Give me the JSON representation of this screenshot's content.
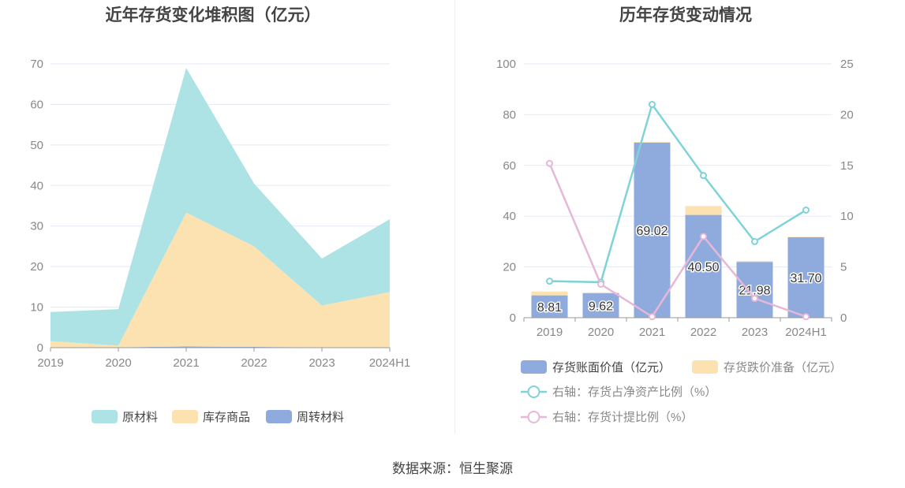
{
  "source_text": "数据来源：恒生聚源",
  "chart_data": [
    {
      "type": "area",
      "stacked": true,
      "title": "近年存货变化堆积图（亿元）",
      "categories": [
        "2019",
        "2020",
        "2021",
        "2022",
        "2023",
        "2024H1"
      ],
      "y_ticks": [
        0,
        10,
        20,
        30,
        40,
        50,
        60,
        70
      ],
      "ylim": [
        0,
        70
      ],
      "grid": true,
      "legend_position": "bottom",
      "series": [
        {
          "name": "周转材料",
          "color": "#8faadc",
          "values": [
            0.1,
            0.1,
            0.3,
            0.2,
            0.1,
            0.1
          ]
        },
        {
          "name": "库存商品",
          "color": "#fde2b1",
          "values": [
            1.5,
            0.4,
            33.0,
            24.8,
            10.3,
            13.6
          ]
        },
        {
          "name": "原材料",
          "color": "#aee3e5",
          "values": [
            7.2,
            9.0,
            35.7,
            15.5,
            11.6,
            18.0
          ]
        }
      ],
      "legend_order": [
        "原材料",
        "库存商品",
        "周转材料"
      ]
    },
    {
      "type": "bar",
      "title": "历年存货变动情况",
      "categories": [
        "2019",
        "2020",
        "2021",
        "2022",
        "2023",
        "2024H1"
      ],
      "y_left_ticks": [
        0,
        20,
        40,
        60,
        80,
        100
      ],
      "ylim_left": [
        0,
        100
      ],
      "y_right_ticks": [
        0,
        5,
        10,
        15,
        20,
        25
      ],
      "ylim_right": [
        0,
        25
      ],
      "grid": true,
      "legend_position": "bottom",
      "bar_series": [
        {
          "name": "存货账面价值（亿元）",
          "color": "#8faadc",
          "values": [
            8.81,
            9.62,
            69.02,
            40.5,
            21.98,
            31.7
          ],
          "labels": [
            "8.81",
            "9.62",
            "69.02",
            "40.50",
            "21.98",
            "31.70"
          ]
        },
        {
          "name": "存货跌价准备（亿元）",
          "color": "#fde2b1",
          "values": [
            1.5,
            0.4,
            0.2,
            3.5,
            0.4,
            0.2
          ]
        }
      ],
      "line_series": [
        {
          "name": "右轴：存货占净资产比例（%）",
          "color": "#7fd3d7",
          "values": [
            3.6,
            3.5,
            21.0,
            14.0,
            7.5,
            10.6
          ]
        },
        {
          "name": "右轴：存货计提比例（%）",
          "color": "#e7b7d8",
          "values": [
            15.2,
            3.3,
            0.1,
            8.0,
            1.9,
            0.1
          ]
        }
      ]
    }
  ]
}
